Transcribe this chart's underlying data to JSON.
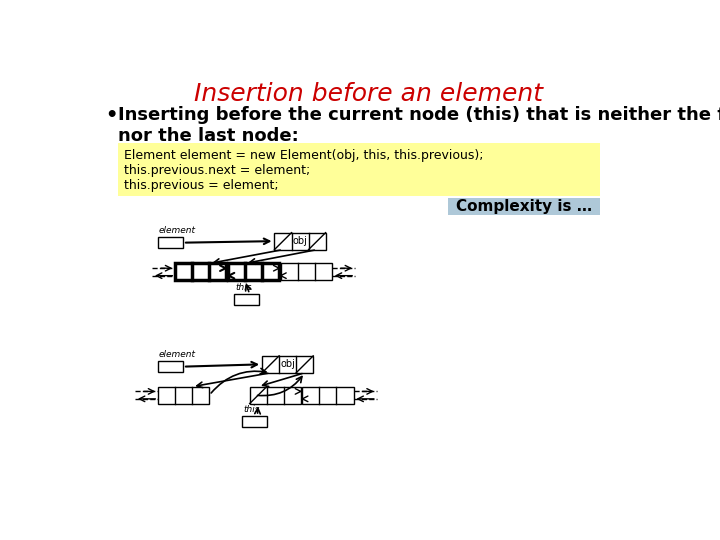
{
  "title": "Insertion before an element",
  "title_color": "#cc0000",
  "title_fontsize": 18,
  "bullet_text": "Inserting before the current node (this) that is neither the first\nnor the last node:",
  "bullet_fontsize": 13,
  "code_lines": [
    "Element element = new Element(obj, this, this.previous);",
    "this.previous.next = element;",
    "this.previous = element;"
  ],
  "code_bg": "#ffff99",
  "complexity_text": "Complexity is …",
  "complexity_bg": "#aec8d8",
  "bg_color": "#ffffff"
}
